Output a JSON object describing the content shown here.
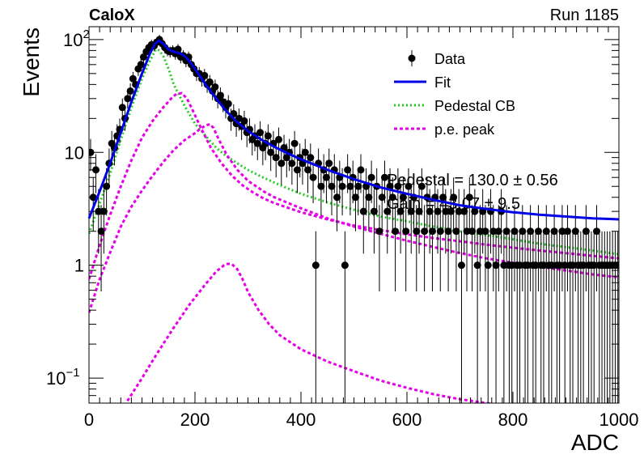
{
  "header": {
    "experiment": "CaloX",
    "run": "Run 1185"
  },
  "chart_data": {
    "type": "scatter",
    "xlabel": "ADC",
    "ylabel": "Events",
    "xlim": [
      0,
      1000
    ],
    "ylim": [
      0.06,
      130
    ],
    "y_scale": "log",
    "x_ticks": [
      "0",
      "200",
      "400",
      "600",
      "800",
      "1000"
    ],
    "y_ticks": [
      {
        "value": 0.1,
        "base": "10",
        "exp": "−1"
      },
      {
        "value": 1,
        "base": "1",
        "exp": ""
      },
      {
        "value": 10,
        "base": "10",
        "exp": ""
      },
      {
        "value": 100,
        "base": "10",
        "exp": "2"
      }
    ],
    "legend": {
      "position": "top-right",
      "entries": [
        {
          "label": "Data",
          "style": "marker",
          "color": "#000000"
        },
        {
          "label": "Fit",
          "style": "line",
          "color": "#0000e6"
        },
        {
          "label": "Pedestal CB",
          "style": "dotted",
          "color": "#22cc22"
        },
        {
          "label": "p.e. peak",
          "style": "dashed",
          "color": "#e600e6"
        }
      ]
    },
    "fit_params": [
      "Pedestal = 130.0 ± 0.56",
      "Gain = 43.07 ± 9.5"
    ],
    "colors": {
      "data": "#000000",
      "fit": "#0000e6",
      "pedestal": "#22cc22",
      "pe": "#e600e6"
    },
    "data_points": [
      [
        3,
        10
      ],
      [
        8,
        4
      ],
      [
        13,
        7
      ],
      [
        18,
        3
      ],
      [
        23,
        2
      ],
      [
        28,
        3
      ],
      [
        33,
        5
      ],
      [
        38,
        8
      ],
      [
        43,
        12
      ],
      [
        48,
        11
      ],
      [
        53,
        14
      ],
      [
        58,
        16
      ],
      [
        63,
        25
      ],
      [
        68,
        20
      ],
      [
        73,
        30
      ],
      [
        78,
        35
      ],
      [
        83,
        45
      ],
      [
        88,
        40
      ],
      [
        93,
        55
      ],
      [
        98,
        60
      ],
      [
        103,
        70
      ],
      [
        108,
        78
      ],
      [
        113,
        85
      ],
      [
        118,
        90
      ],
      [
        123,
        88
      ],
      [
        128,
        95
      ],
      [
        133,
        100
      ],
      [
        138,
        92
      ],
      [
        143,
        85
      ],
      [
        148,
        80
      ],
      [
        153,
        78
      ],
      [
        158,
        80
      ],
      [
        163,
        75
      ],
      [
        168,
        82
      ],
      [
        173,
        70
      ],
      [
        178,
        72
      ],
      [
        183,
        65
      ],
      [
        188,
        70
      ],
      [
        193,
        60
      ],
      [
        198,
        55
      ],
      [
        203,
        50
      ],
      [
        208,
        50
      ],
      [
        213,
        45
      ],
      [
        218,
        48
      ],
      [
        223,
        40
      ],
      [
        228,
        42
      ],
      [
        233,
        35
      ],
      [
        238,
        38
      ],
      [
        243,
        30
      ],
      [
        248,
        32
      ],
      [
        253,
        28
      ],
      [
        258,
        25
      ],
      [
        263,
        27
      ],
      [
        268,
        20
      ],
      [
        273,
        22
      ],
      [
        278,
        18
      ],
      [
        283,
        20
      ],
      [
        288,
        17
      ],
      [
        293,
        19
      ],
      [
        298,
        15
      ],
      [
        303,
        16
      ],
      [
        308,
        13
      ],
      [
        313,
        14
      ],
      [
        318,
        12
      ],
      [
        323,
        15
      ],
      [
        328,
        11
      ],
      [
        333,
        12
      ],
      [
        338,
        14
      ],
      [
        343,
        10
      ],
      [
        348,
        12
      ],
      [
        353,
        9
      ],
      [
        358,
        13
      ],
      [
        363,
        8
      ],
      [
        368,
        11
      ],
      [
        373,
        9
      ],
      [
        378,
        10
      ],
      [
        383,
        8
      ],
      [
        388,
        12
      ],
      [
        393,
        7
      ],
      [
        398,
        9
      ],
      [
        403,
        8
      ],
      [
        408,
        10
      ],
      [
        413,
        7
      ],
      [
        418,
        9
      ],
      [
        423,
        6
      ],
      [
        428,
        1
      ],
      [
        433,
        8
      ],
      [
        438,
        5
      ],
      [
        443,
        7
      ],
      [
        448,
        6
      ],
      [
        453,
        8
      ],
      [
        458,
        5
      ],
      [
        463,
        7
      ],
      [
        468,
        4
      ],
      [
        473,
        6
      ],
      [
        478,
        5
      ],
      [
        483,
        1
      ],
      [
        488,
        7
      ],
      [
        493,
        5
      ],
      [
        498,
        6
      ],
      [
        503,
        4
      ],
      [
        508,
        5
      ],
      [
        513,
        7
      ],
      [
        518,
        3
      ],
      [
        523,
        5
      ],
      [
        528,
        4
      ],
      [
        533,
        6
      ],
      [
        538,
        3
      ],
      [
        543,
        5
      ],
      [
        548,
        2
      ],
      [
        553,
        4
      ],
      [
        558,
        6
      ],
      [
        563,
        3
      ],
      [
        568,
        5
      ],
      [
        573,
        4
      ],
      [
        578,
        2
      ],
      [
        583,
        5
      ],
      [
        588,
        3
      ],
      [
        593,
        4
      ],
      [
        598,
        2
      ],
      [
        603,
        5
      ],
      [
        608,
        3
      ],
      [
        613,
        4
      ],
      [
        618,
        2
      ],
      [
        623,
        3
      ],
      [
        628,
        5
      ],
      [
        633,
        2
      ],
      [
        638,
        4
      ],
      [
        643,
        3
      ],
      [
        648,
        2
      ],
      [
        653,
        4
      ],
      [
        658,
        3
      ],
      [
        663,
        2
      ],
      [
        668,
        4
      ],
      [
        673,
        3
      ],
      [
        678,
        2
      ],
      [
        683,
        3
      ],
      [
        688,
        4
      ],
      [
        693,
        2
      ],
      [
        698,
        3
      ],
      [
        703,
        1
      ],
      [
        708,
        3
      ],
      [
        713,
        2
      ],
      [
        718,
        4
      ],
      [
        723,
        2
      ],
      [
        728,
        3
      ],
      [
        733,
        1
      ],
      [
        738,
        2
      ],
      [
        743,
        3
      ],
      [
        748,
        2
      ],
      [
        753,
        1
      ],
      [
        758,
        3
      ],
      [
        763,
        2
      ],
      [
        768,
        1
      ],
      [
        773,
        2
      ],
      [
        778,
        3
      ],
      [
        783,
        1
      ],
      [
        788,
        2
      ],
      [
        793,
        1
      ],
      [
        798,
        1
      ],
      [
        803,
        2
      ],
      [
        808,
        1
      ],
      [
        813,
        1
      ],
      [
        818,
        2
      ],
      [
        823,
        1
      ],
      [
        828,
        1
      ],
      [
        833,
        2
      ],
      [
        838,
        1
      ],
      [
        843,
        1
      ],
      [
        848,
        2
      ],
      [
        853,
        1
      ],
      [
        858,
        1
      ],
      [
        863,
        2
      ],
      [
        868,
        1
      ],
      [
        873,
        1
      ],
      [
        878,
        2
      ],
      [
        883,
        1
      ],
      [
        888,
        1
      ],
      [
        893,
        2
      ],
      [
        898,
        1
      ],
      [
        903,
        2
      ],
      [
        908,
        1
      ],
      [
        913,
        1
      ],
      [
        918,
        2
      ],
      [
        923,
        1
      ],
      [
        928,
        1
      ],
      [
        933,
        1
      ],
      [
        938,
        2
      ],
      [
        943,
        1
      ],
      [
        948,
        1
      ],
      [
        953,
        1
      ],
      [
        958,
        2
      ],
      [
        963,
        1
      ],
      [
        968,
        1
      ],
      [
        973,
        1
      ],
      [
        978,
        1
      ],
      [
        983,
        1
      ],
      [
        988,
        1
      ],
      [
        993,
        1
      ],
      [
        998,
        1
      ]
    ],
    "fit_curve": [
      [
        0,
        2.6
      ],
      [
        20,
        4.5
      ],
      [
        40,
        8
      ],
      [
        60,
        15
      ],
      [
        80,
        28
      ],
      [
        100,
        50
      ],
      [
        115,
        75
      ],
      [
        125,
        92
      ],
      [
        132,
        98
      ],
      [
        140,
        92
      ],
      [
        150,
        82
      ],
      [
        160,
        78
      ],
      [
        170,
        76
      ],
      [
        180,
        72
      ],
      [
        190,
        64
      ],
      [
        200,
        55
      ],
      [
        220,
        40
      ],
      [
        240,
        30
      ],
      [
        260,
        23
      ],
      [
        280,
        18.5
      ],
      [
        300,
        15.5
      ],
      [
        325,
        13
      ],
      [
        350,
        11.2
      ],
      [
        375,
        9.8
      ],
      [
        400,
        8.7
      ],
      [
        450,
        7
      ],
      [
        500,
        5.8
      ],
      [
        550,
        4.9
      ],
      [
        600,
        4.3
      ],
      [
        650,
        3.8
      ],
      [
        700,
        3.4
      ],
      [
        750,
        3.15
      ],
      [
        800,
        2.95
      ],
      [
        850,
        2.8
      ],
      [
        900,
        2.7
      ],
      [
        950,
        2.6
      ],
      [
        1000,
        2.55
      ]
    ],
    "pedestal_curve": [
      [
        0,
        1.9
      ],
      [
        20,
        3.5
      ],
      [
        40,
        6.5
      ],
      [
        60,
        13
      ],
      [
        80,
        25
      ],
      [
        100,
        45
      ],
      [
        115,
        65
      ],
      [
        125,
        80
      ],
      [
        130,
        82
      ],
      [
        140,
        72
      ],
      [
        150,
        55
      ],
      [
        160,
        40
      ],
      [
        180,
        26
      ],
      [
        200,
        18
      ],
      [
        220,
        14
      ],
      [
        240,
        11
      ],
      [
        260,
        9.2
      ],
      [
        280,
        8
      ],
      [
        300,
        7
      ],
      [
        325,
        6.1
      ],
      [
        350,
        5.4
      ],
      [
        375,
        4.8
      ],
      [
        400,
        4.3
      ],
      [
        450,
        3.6
      ],
      [
        500,
        3.1
      ],
      [
        550,
        2.7
      ],
      [
        600,
        2.45
      ],
      [
        650,
        2.2
      ],
      [
        700,
        2.0
      ],
      [
        750,
        1.85
      ],
      [
        800,
        1.7
      ],
      [
        850,
        1.55
      ],
      [
        900,
        1.45
      ],
      [
        950,
        1.35
      ],
      [
        1000,
        1.25
      ]
    ],
    "pe_peak_curves": [
      [
        [
          0,
          0.75
        ],
        [
          20,
          1.5
        ],
        [
          40,
          2.8
        ],
        [
          60,
          5
        ],
        [
          80,
          8.5
        ],
        [
          100,
          13.5
        ],
        [
          120,
          19
        ],
        [
          140,
          25
        ],
        [
          155,
          30
        ],
        [
          165,
          33
        ],
        [
          175,
          33.5
        ],
        [
          185,
          30
        ],
        [
          195,
          24
        ],
        [
          210,
          17
        ],
        [
          230,
          11
        ],
        [
          250,
          8
        ],
        [
          270,
          6.2
        ],
        [
          290,
          5.1
        ],
        [
          310,
          4.4
        ],
        [
          330,
          3.9
        ],
        [
          350,
          3.55
        ],
        [
          400,
          2.95
        ],
        [
          450,
          2.55
        ],
        [
          500,
          2.25
        ],
        [
          550,
          2.05
        ],
        [
          600,
          1.88
        ],
        [
          650,
          1.74
        ],
        [
          700,
          1.63
        ],
        [
          750,
          1.52
        ],
        [
          800,
          1.43
        ],
        [
          850,
          1.35
        ],
        [
          900,
          1.28
        ],
        [
          950,
          1.21
        ],
        [
          1000,
          1.15
        ]
      ],
      [
        [
          0,
          0.38
        ],
        [
          20,
          0.75
        ],
        [
          40,
          1.3
        ],
        [
          60,
          2.2
        ],
        [
          80,
          3.3
        ],
        [
          100,
          4.6
        ],
        [
          120,
          6.2
        ],
        [
          140,
          8.2
        ],
        [
          160,
          10.5
        ],
        [
          180,
          12.8
        ],
        [
          200,
          14.8
        ],
        [
          210,
          16.2
        ],
        [
          220,
          17.3
        ],
        [
          228,
          17.8
        ],
        [
          235,
          16.5
        ],
        [
          245,
          13
        ],
        [
          260,
          9.5
        ],
        [
          280,
          7
        ],
        [
          300,
          5.6
        ],
        [
          330,
          4.5
        ],
        [
          350,
          4
        ],
        [
          400,
          3.2
        ],
        [
          450,
          2.6
        ],
        [
          500,
          2.2
        ],
        [
          550,
          1.9
        ],
        [
          600,
          1.65
        ],
        [
          650,
          1.45
        ],
        [
          700,
          1.28
        ],
        [
          750,
          1.15
        ],
        [
          800,
          1.05
        ],
        [
          850,
          0.97
        ],
        [
          900,
          0.9
        ],
        [
          950,
          0.83
        ],
        [
          1000,
          0.78
        ]
      ],
      [
        [
          0,
          0.02
        ],
        [
          40,
          0.04
        ],
        [
          70,
          0.06
        ],
        [
          100,
          0.1
        ],
        [
          130,
          0.17
        ],
        [
          160,
          0.28
        ],
        [
          190,
          0.45
        ],
        [
          220,
          0.68
        ],
        [
          240,
          0.88
        ],
        [
          255,
          1.0
        ],
        [
          262,
          1.03
        ],
        [
          270,
          1.02
        ],
        [
          280,
          0.92
        ],
        [
          290,
          0.75
        ],
        [
          300,
          0.58
        ],
        [
          320,
          0.4
        ],
        [
          340,
          0.3
        ],
        [
          360,
          0.24
        ],
        [
          400,
          0.18
        ],
        [
          450,
          0.14
        ],
        [
          500,
          0.115
        ],
        [
          550,
          0.095
        ],
        [
          600,
          0.082
        ],
        [
          650,
          0.072
        ],
        [
          700,
          0.065
        ],
        [
          750,
          0.06
        ],
        [
          800,
          0.056
        ],
        [
          850,
          0.052
        ]
      ]
    ]
  }
}
